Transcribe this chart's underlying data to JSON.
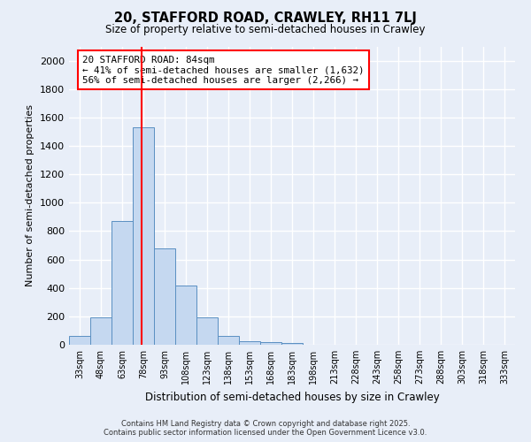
{
  "title1": "20, STAFFORD ROAD, CRAWLEY, RH11 7LJ",
  "title2": "Size of property relative to semi-detached houses in Crawley",
  "xlabel": "Distribution of semi-detached houses by size in Crawley",
  "ylabel": "Number of semi-detached properties",
  "bin_labels": [
    "33sqm",
    "48sqm",
    "63sqm",
    "78sqm",
    "93sqm",
    "108sqm",
    "123sqm",
    "138sqm",
    "153sqm",
    "168sqm",
    "183sqm",
    "198sqm",
    "213sqm",
    "228sqm",
    "243sqm",
    "258sqm",
    "273sqm",
    "288sqm",
    "303sqm",
    "318sqm",
    "333sqm"
  ],
  "bin_edges": [
    33,
    48,
    63,
    78,
    93,
    108,
    123,
    138,
    153,
    168,
    183,
    198,
    213,
    228,
    243,
    258,
    273,
    288,
    303,
    318,
    333
  ],
  "bar_heights": [
    65,
    195,
    870,
    1530,
    680,
    415,
    195,
    60,
    25,
    20,
    10,
    0,
    0,
    0,
    0,
    0,
    0,
    0,
    0,
    0,
    0
  ],
  "bar_color": "#c5d8f0",
  "bar_edge_color": "#5a8fc2",
  "bg_color": "#e8eef8",
  "grid_color": "#ffffff",
  "red_line_x": 84,
  "ylim": [
    0,
    2100
  ],
  "yticks": [
    0,
    200,
    400,
    600,
    800,
    1000,
    1200,
    1400,
    1600,
    1800,
    2000
  ],
  "annotation_title": "20 STAFFORD ROAD: 84sqm",
  "annotation_line1": "← 41% of semi-detached houses are smaller (1,632)",
  "annotation_line2": "56% of semi-detached houses are larger (2,266) →",
  "footer1": "Contains HM Land Registry data © Crown copyright and database right 2025.",
  "footer2": "Contains public sector information licensed under the Open Government Licence v3.0."
}
